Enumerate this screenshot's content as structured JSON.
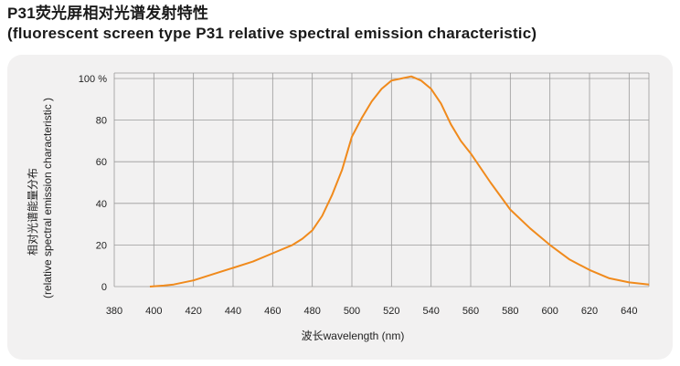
{
  "title_cn": "P31荧光屏相对光谱发射特性",
  "title_en": "(fluorescent screen type P31 relative spectral emission characteristic)",
  "colors": {
    "curve": "#f08a1c",
    "grid": "#9a9a9a",
    "panel": "#f2f1f1"
  },
  "chart_data": {
    "type": "line",
    "xlabel": "波长wavelength (nm)",
    "ylabel_cn": "相对光谱能量分布",
    "ylabel_en": "(relative spectral emission characteristic )",
    "xlim": [
      380,
      650
    ],
    "ylim": [
      0,
      100
    ],
    "x_ticks": [
      "380",
      "400",
      "420",
      "440",
      "460",
      "480",
      "500",
      "520",
      "540",
      "560",
      "580",
      "600",
      "620",
      "640"
    ],
    "y_ticks": [
      "0",
      "20",
      "40",
      "60",
      "80",
      "100 %"
    ],
    "grid": true,
    "series": [
      {
        "x": [
          398,
          405,
          410,
          420,
          430,
          440,
          450,
          460,
          470,
          475,
          480,
          485,
          490,
          495,
          500,
          505,
          510,
          515,
          520,
          525,
          530,
          535,
          540,
          545,
          550,
          555,
          560,
          570,
          580,
          590,
          600,
          610,
          620,
          630,
          640,
          650
        ],
        "y": [
          0,
          0.5,
          1,
          3,
          6,
          9,
          12,
          16,
          20,
          23,
          27,
          34,
          44,
          56,
          72,
          81,
          89,
          95,
          99,
          100,
          101,
          99,
          95,
          88,
          78,
          70,
          64,
          50,
          37,
          28,
          20,
          13,
          8,
          4,
          2,
          1
        ]
      }
    ]
  }
}
